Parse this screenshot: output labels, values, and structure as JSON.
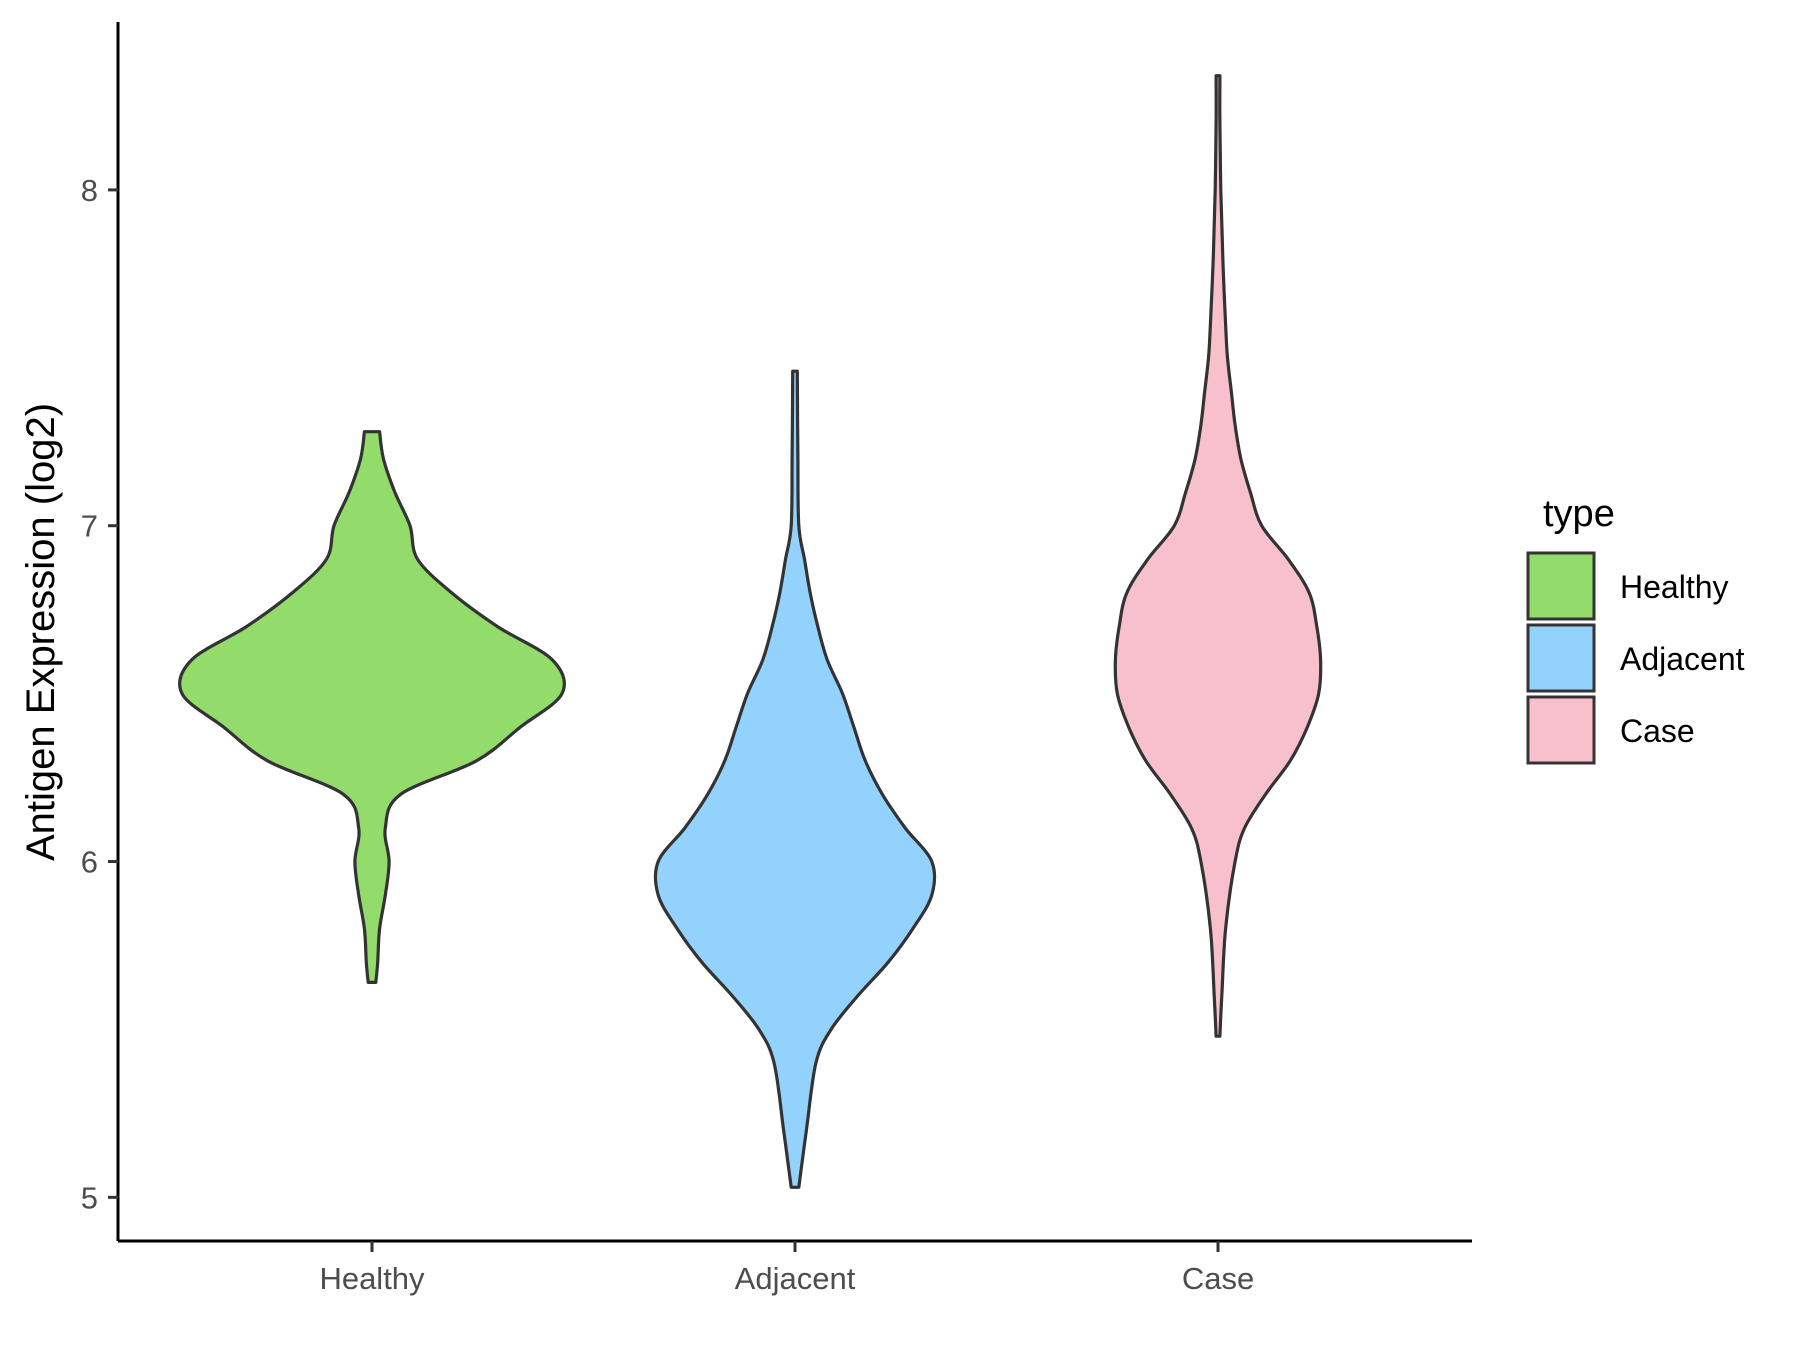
{
  "chart_data": {
    "type": "violin",
    "title": "",
    "xlabel": "",
    "ylabel": "Antigen Expression (log2)",
    "categories": [
      "Healthy",
      "Adjacent",
      "Case"
    ],
    "yticks": [
      5,
      6,
      7,
      8
    ],
    "ylim": [
      4.87,
      8.5
    ],
    "grid": false,
    "legend": {
      "title": "type",
      "position": "right",
      "entries": [
        {
          "label": "Healthy",
          "color": "#93dc6b"
        },
        {
          "label": "Adjacent",
          "color": "#94d2fe"
        },
        {
          "label": "Case",
          "color": "#f8c0cc"
        }
      ]
    },
    "series": [
      {
        "category": "Healthy",
        "color": "#93dc6b",
        "min": 5.64,
        "max": 7.28,
        "density_profile": [
          [
            5.64,
            0.02
          ],
          [
            5.7,
            0.03
          ],
          [
            5.8,
            0.04
          ],
          [
            5.9,
            0.07
          ],
          [
            6.0,
            0.09
          ],
          [
            6.1,
            0.07
          ],
          [
            6.2,
            0.15
          ],
          [
            6.3,
            0.55
          ],
          [
            6.4,
            0.78
          ],
          [
            6.5,
            1.0
          ],
          [
            6.6,
            0.95
          ],
          [
            6.7,
            0.66
          ],
          [
            6.8,
            0.42
          ],
          [
            6.9,
            0.24
          ],
          [
            7.0,
            0.2
          ],
          [
            7.1,
            0.12
          ],
          [
            7.2,
            0.06
          ],
          [
            7.28,
            0.04
          ]
        ]
      },
      {
        "category": "Adjacent",
        "color": "#94d2fe",
        "min": 5.03,
        "max": 7.46,
        "density_profile": [
          [
            5.03,
            0.02
          ],
          [
            5.2,
            0.06
          ],
          [
            5.4,
            0.11
          ],
          [
            5.5,
            0.19
          ],
          [
            5.6,
            0.33
          ],
          [
            5.7,
            0.49
          ],
          [
            5.8,
            0.62
          ],
          [
            5.9,
            0.72
          ],
          [
            6.0,
            0.72
          ],
          [
            6.1,
            0.58
          ],
          [
            6.2,
            0.46
          ],
          [
            6.3,
            0.37
          ],
          [
            6.4,
            0.31
          ],
          [
            6.5,
            0.25
          ],
          [
            6.6,
            0.17
          ],
          [
            6.7,
            0.12
          ],
          [
            6.8,
            0.08
          ],
          [
            6.9,
            0.05
          ],
          [
            7.0,
            0.02
          ],
          [
            7.2,
            0.015
          ],
          [
            7.46,
            0.012
          ]
        ]
      },
      {
        "category": "Case",
        "color": "#f8c0cc",
        "min": 5.48,
        "max": 8.34,
        "density_profile": [
          [
            5.48,
            0.01
          ],
          [
            5.6,
            0.02
          ],
          [
            5.8,
            0.04
          ],
          [
            6.0,
            0.09
          ],
          [
            6.1,
            0.14
          ],
          [
            6.2,
            0.25
          ],
          [
            6.3,
            0.38
          ],
          [
            6.4,
            0.47
          ],
          [
            6.5,
            0.53
          ],
          [
            6.6,
            0.54
          ],
          [
            6.7,
            0.52
          ],
          [
            6.8,
            0.48
          ],
          [
            6.9,
            0.37
          ],
          [
            7.0,
            0.23
          ],
          [
            7.1,
            0.17
          ],
          [
            7.2,
            0.12
          ],
          [
            7.3,
            0.09
          ],
          [
            7.4,
            0.07
          ],
          [
            7.5,
            0.05
          ],
          [
            7.6,
            0.04
          ],
          [
            7.8,
            0.025
          ],
          [
            8.0,
            0.015
          ],
          [
            8.2,
            0.01
          ],
          [
            8.34,
            0.01
          ]
        ]
      }
    ]
  }
}
